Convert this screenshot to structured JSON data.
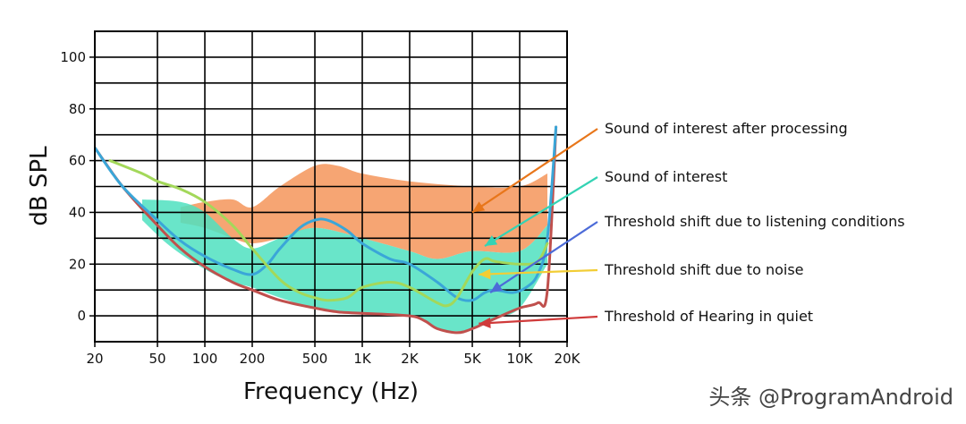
{
  "chart_data": {
    "type": "area",
    "xlabel": "Frequency (Hz)",
    "ylabel": "dB SPL",
    "x_scale": "log",
    "xlim": [
      20,
      20000
    ],
    "ylim": [
      -10,
      110
    ],
    "grid": true,
    "x_ticks": [
      {
        "value": 20,
        "label": "20"
      },
      {
        "value": 50,
        "label": "50"
      },
      {
        "value": 100,
        "label": "100"
      },
      {
        "value": 200,
        "label": "200"
      },
      {
        "value": 500,
        "label": "500"
      },
      {
        "value": 1000,
        "label": "1K"
      },
      {
        "value": 2000,
        "label": "2K"
      },
      {
        "value": 5000,
        "label": "5K"
      },
      {
        "value": 10000,
        "label": "10K"
      },
      {
        "value": 20000,
        "label": "20K"
      }
    ],
    "y_ticks": [
      {
        "value": 0,
        "label": "0"
      },
      {
        "value": 20,
        "label": "20"
      },
      {
        "value": 40,
        "label": "40"
      },
      {
        "value": 60,
        "label": "60"
      },
      {
        "value": 80,
        "label": "80"
      },
      {
        "value": 100,
        "label": "100"
      }
    ],
    "y_grid": [
      0,
      10,
      20,
      30,
      40,
      50,
      60,
      70,
      80,
      90,
      100
    ],
    "bands": [
      {
        "name": "Sound of interest after processing",
        "color": "#f5955a",
        "upper": [
          [
            70,
            42
          ],
          [
            100,
            44
          ],
          [
            150,
            45
          ],
          [
            200,
            42
          ],
          [
            300,
            50
          ],
          [
            500,
            58
          ],
          [
            700,
            58
          ],
          [
            1000,
            55
          ],
          [
            2000,
            52
          ],
          [
            5000,
            50
          ],
          [
            10000,
            50
          ],
          [
            15000,
            55
          ]
        ],
        "lower": [
          [
            70,
            36
          ],
          [
            100,
            34
          ],
          [
            150,
            30
          ],
          [
            200,
            28
          ],
          [
            300,
            30
          ],
          [
            500,
            34
          ],
          [
            1000,
            30
          ],
          [
            2000,
            25
          ],
          [
            3000,
            22
          ],
          [
            5000,
            25
          ],
          [
            10000,
            25
          ],
          [
            15000,
            35
          ]
        ]
      },
      {
        "name": "Sound of interest",
        "color": "#4fe0c0",
        "upper": [
          [
            40,
            45
          ],
          [
            70,
            44
          ],
          [
            100,
            40
          ],
          [
            150,
            30
          ],
          [
            200,
            26
          ],
          [
            300,
            30
          ],
          [
            500,
            34
          ],
          [
            1000,
            30
          ],
          [
            2000,
            25
          ],
          [
            3000,
            22
          ],
          [
            5000,
            25
          ],
          [
            10000,
            25
          ],
          [
            15000,
            35
          ]
        ],
        "lower": [
          [
            40,
            37
          ],
          [
            60,
            27
          ],
          [
            100,
            18
          ],
          [
            150,
            13
          ],
          [
            200,
            11
          ],
          [
            300,
            7
          ],
          [
            500,
            3
          ],
          [
            1000,
            1
          ],
          [
            2000,
            0
          ],
          [
            3000,
            -5
          ],
          [
            4000,
            -6
          ],
          [
            5000,
            -5
          ],
          [
            7000,
            -1
          ],
          [
            10000,
            3
          ],
          [
            15000,
            20
          ]
        ]
      }
    ],
    "series": [
      {
        "name": "Threshold of Hearing in quiet",
        "color": "#c0504d",
        "points": [
          [
            20,
            65
          ],
          [
            30,
            50
          ],
          [
            50,
            35
          ],
          [
            70,
            26
          ],
          [
            100,
            19
          ],
          [
            150,
            13
          ],
          [
            200,
            10
          ],
          [
            300,
            6
          ],
          [
            500,
            3
          ],
          [
            700,
            1.5
          ],
          [
            1000,
            1
          ],
          [
            2000,
            0
          ],
          [
            2500,
            -2
          ],
          [
            3000,
            -5
          ],
          [
            4000,
            -6.5
          ],
          [
            5000,
            -5
          ],
          [
            7000,
            -1
          ],
          [
            10000,
            3
          ],
          [
            13000,
            5
          ],
          [
            15000,
            10
          ],
          [
            17000,
            73
          ]
        ]
      },
      {
        "name": "Threshold shift due to listening conditions",
        "color": "#3aa6d8",
        "points": [
          [
            20,
            65
          ],
          [
            30,
            50
          ],
          [
            50,
            37
          ],
          [
            70,
            29
          ],
          [
            100,
            23
          ],
          [
            150,
            18
          ],
          [
            200,
            16
          ],
          [
            250,
            20
          ],
          [
            300,
            26
          ],
          [
            400,
            34
          ],
          [
            500,
            37
          ],
          [
            600,
            37
          ],
          [
            800,
            33
          ],
          [
            1000,
            28
          ],
          [
            1500,
            22
          ],
          [
            2000,
            20
          ],
          [
            3000,
            13
          ],
          [
            4000,
            7
          ],
          [
            5000,
            6
          ],
          [
            6000,
            9
          ],
          [
            7000,
            10
          ],
          [
            9000,
            9
          ],
          [
            11000,
            11
          ],
          [
            13000,
            16
          ],
          [
            15000,
            30
          ],
          [
            17000,
            73
          ]
        ]
      },
      {
        "name": "Threshold shift due to noise",
        "color": "#a3d85a",
        "points": [
          [
            25,
            60
          ],
          [
            40,
            55
          ],
          [
            50,
            52
          ],
          [
            70,
            49
          ],
          [
            100,
            44
          ],
          [
            150,
            35
          ],
          [
            200,
            26
          ],
          [
            300,
            14
          ],
          [
            400,
            9
          ],
          [
            500,
            7
          ],
          [
            600,
            6
          ],
          [
            800,
            7
          ],
          [
            1000,
            11
          ],
          [
            1500,
            13
          ],
          [
            2000,
            11
          ],
          [
            3000,
            5
          ],
          [
            3500,
            4
          ],
          [
            4000,
            7
          ],
          [
            5000,
            17
          ],
          [
            6000,
            22
          ],
          [
            7000,
            21
          ],
          [
            10000,
            20
          ],
          [
            13000,
            21
          ],
          [
            15000,
            28
          ]
        ]
      }
    ],
    "annotations": [
      {
        "text": "Sound of interest after processing",
        "color": "#e8761a",
        "target": [
          5000,
          40
        ]
      },
      {
        "text": "Sound of interest",
        "color": "#34d3b4",
        "target": [
          6000,
          27
        ]
      },
      {
        "text": "Threshold shift due to listening conditions",
        "color": "#4c6bd8",
        "target": [
          6500,
          9
        ]
      },
      {
        "text": "Threshold shift due to noise",
        "color": "#f2cd35",
        "target": [
          5500,
          16
        ]
      },
      {
        "text": "Threshold of Hearing in quiet",
        "color": "#d03a3a",
        "target": [
          5500,
          -3
        ]
      }
    ]
  },
  "watermark": "头条 @ProgramAndroid"
}
